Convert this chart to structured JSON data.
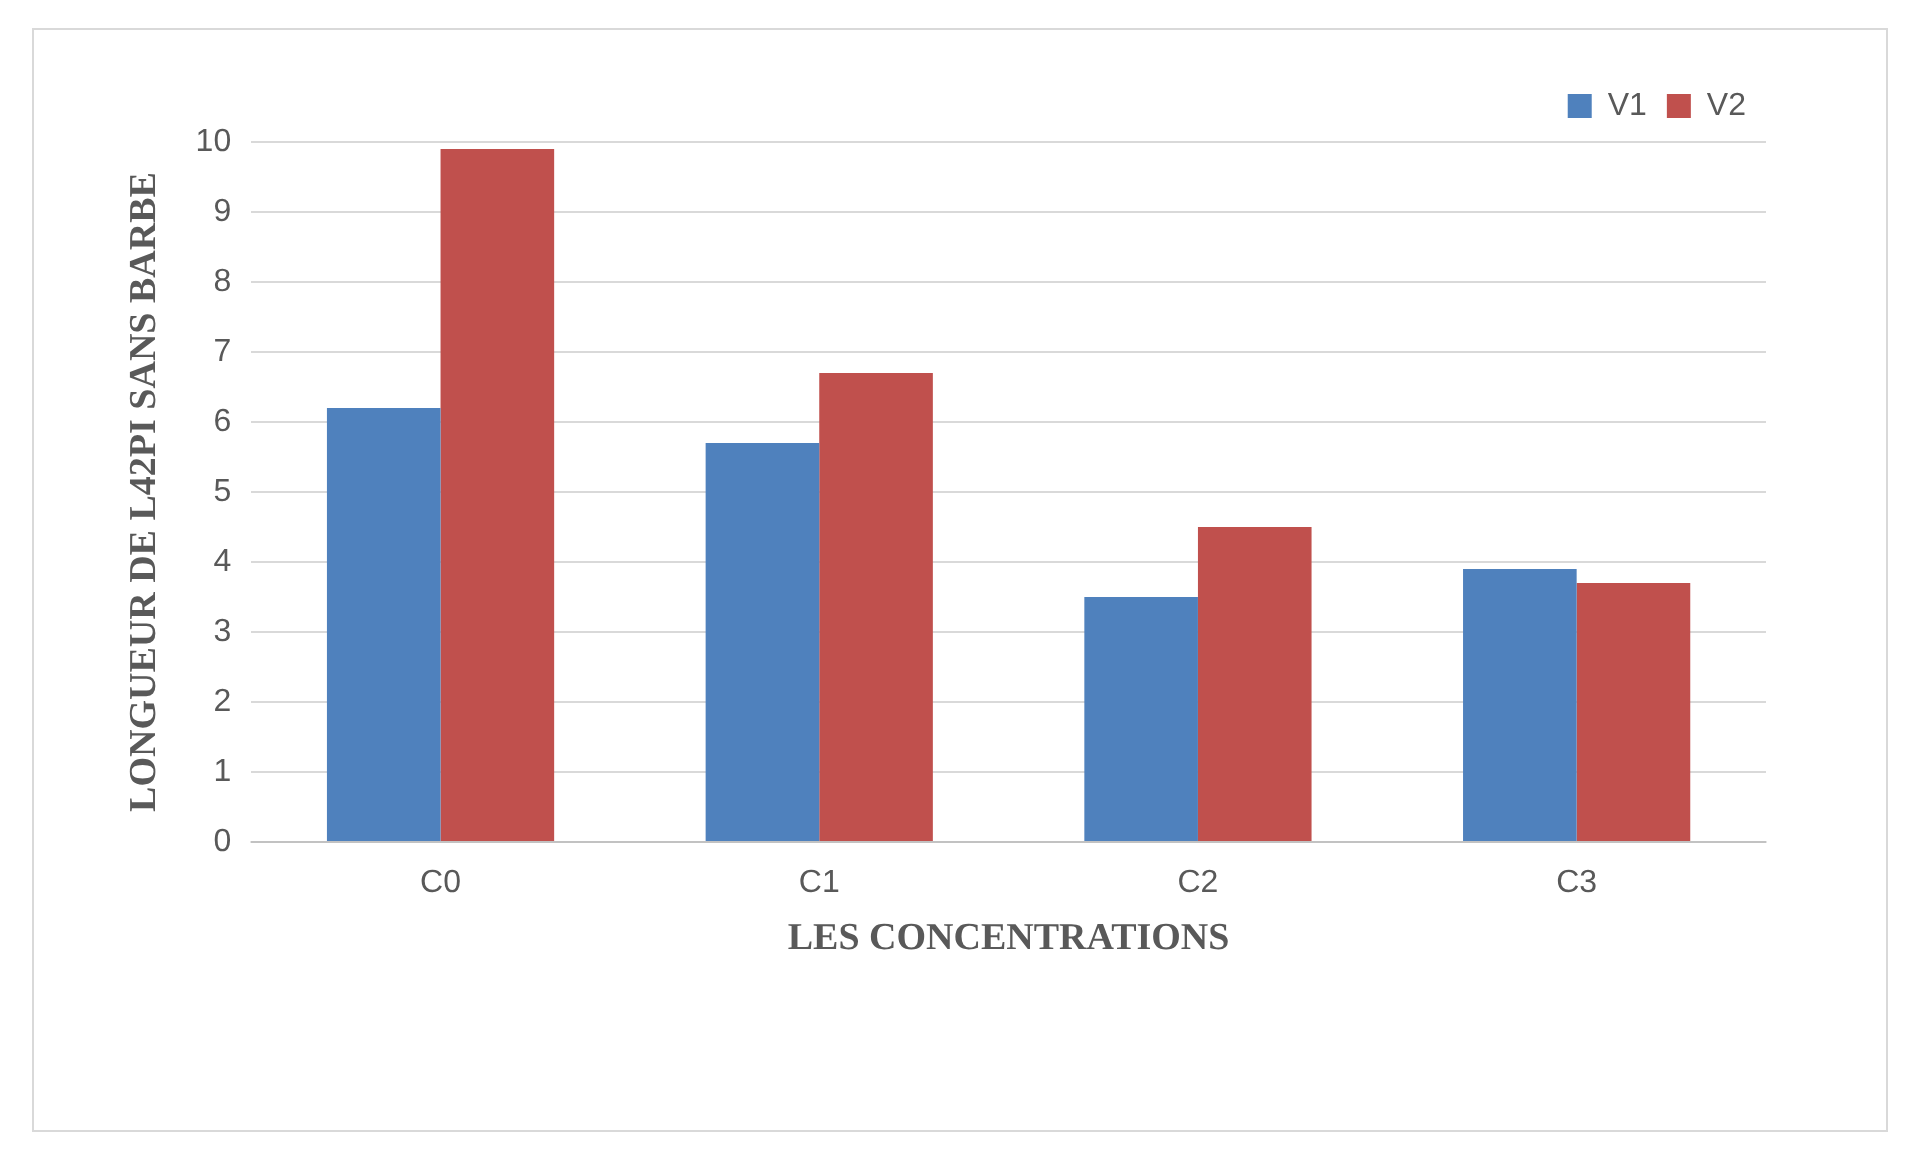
{
  "chart_data": {
    "type": "bar",
    "xlabel": "LES CONCENTRATIONS",
    "ylabel": "LONGUEUR DE L42PI SANS BARBE",
    "categories": [
      "C0",
      "C1",
      "C2",
      "C3"
    ],
    "series": [
      {
        "name": "V1",
        "color": "#4f81bd",
        "values": [
          6.2,
          5.7,
          3.5,
          3.9
        ]
      },
      {
        "name": "V2",
        "color": "#c0504d",
        "values": [
          9.9,
          6.7,
          4.5,
          3.7
        ]
      }
    ],
    "ylim": [
      0,
      10
    ],
    "yticks": [
      0,
      1,
      2,
      3,
      4,
      5,
      6,
      7,
      8,
      9,
      10
    ],
    "grid": "y",
    "legend": "top right"
  }
}
